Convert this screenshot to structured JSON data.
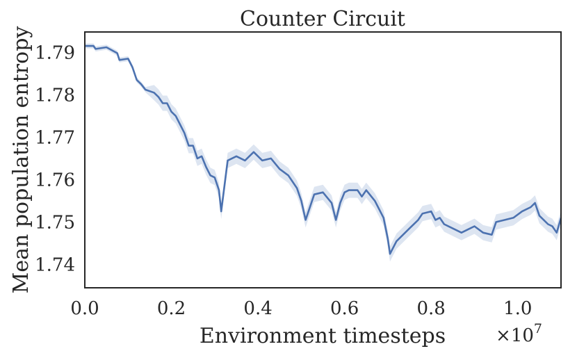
{
  "chart_data": {
    "type": "line",
    "title": "Counter Circuit",
    "xlabel": "Environment timesteps",
    "ylabel": "Mean population entropy",
    "x_multiplier_label": "×10",
    "x_multiplier_exponent": "7",
    "xlim": [
      0.0,
      1.1
    ],
    "ylim": [
      1.7345,
      1.7948
    ],
    "x_ticks": [
      0.0,
      0.2,
      0.4,
      0.6,
      0.8,
      1.0
    ],
    "x_tick_labels": [
      "0.0",
      "0.2",
      "0.4",
      "0.6",
      "0.8",
      "1.0"
    ],
    "y_ticks": [
      1.74,
      1.75,
      1.76,
      1.77,
      1.78,
      1.79
    ],
    "y_tick_labels": [
      "1.74",
      "1.75",
      "1.76",
      "1.77",
      "1.78",
      "1.79"
    ],
    "grid": false,
    "legend": "none",
    "series": [
      {
        "color": "#4c72b0",
        "band_color": "#c7d3e8",
        "x": [
          0.0,
          0.02,
          0.025,
          0.05,
          0.075,
          0.08,
          0.1,
          0.11,
          0.12,
          0.13,
          0.14,
          0.16,
          0.17,
          0.18,
          0.19,
          0.2,
          0.21,
          0.22,
          0.23,
          0.24,
          0.25,
          0.26,
          0.27,
          0.28,
          0.29,
          0.3,
          0.31,
          0.315,
          0.33,
          0.35,
          0.37,
          0.39,
          0.41,
          0.43,
          0.45,
          0.47,
          0.49,
          0.5,
          0.51,
          0.53,
          0.55,
          0.57,
          0.58,
          0.59,
          0.6,
          0.61,
          0.63,
          0.64,
          0.65,
          0.67,
          0.69,
          0.7,
          0.705,
          0.72,
          0.74,
          0.75,
          0.77,
          0.78,
          0.8,
          0.81,
          0.82,
          0.83,
          0.85,
          0.87,
          0.89,
          0.9,
          0.92,
          0.94,
          0.95,
          0.97,
          0.99,
          1.01,
          1.03,
          1.04,
          1.05,
          1.07,
          1.08,
          1.09,
          1.1
        ],
        "y": [
          1.7915,
          1.7915,
          1.7908,
          1.7912,
          1.7898,
          1.7882,
          1.7885,
          1.7865,
          1.7835,
          1.7825,
          1.7812,
          1.7805,
          1.7795,
          1.778,
          1.778,
          1.776,
          1.775,
          1.773,
          1.771,
          1.768,
          1.768,
          1.765,
          1.7655,
          1.763,
          1.761,
          1.7605,
          1.7575,
          1.7525,
          1.7645,
          1.7655,
          1.7645,
          1.7665,
          1.7645,
          1.765,
          1.7625,
          1.761,
          1.758,
          1.755,
          1.7505,
          1.7565,
          1.757,
          1.7545,
          1.7505,
          1.7545,
          1.757,
          1.7575,
          1.7575,
          1.756,
          1.7575,
          1.755,
          1.751,
          1.746,
          1.7425,
          1.7455,
          1.7475,
          1.7485,
          1.7505,
          1.752,
          1.7525,
          1.7505,
          1.751,
          1.7495,
          1.7485,
          1.7475,
          1.7485,
          1.749,
          1.7475,
          1.747,
          1.75,
          1.7505,
          1.751,
          1.7525,
          1.7535,
          1.7545,
          1.7515,
          1.7495,
          1.749,
          1.7475,
          1.751
        ]
      }
    ]
  }
}
